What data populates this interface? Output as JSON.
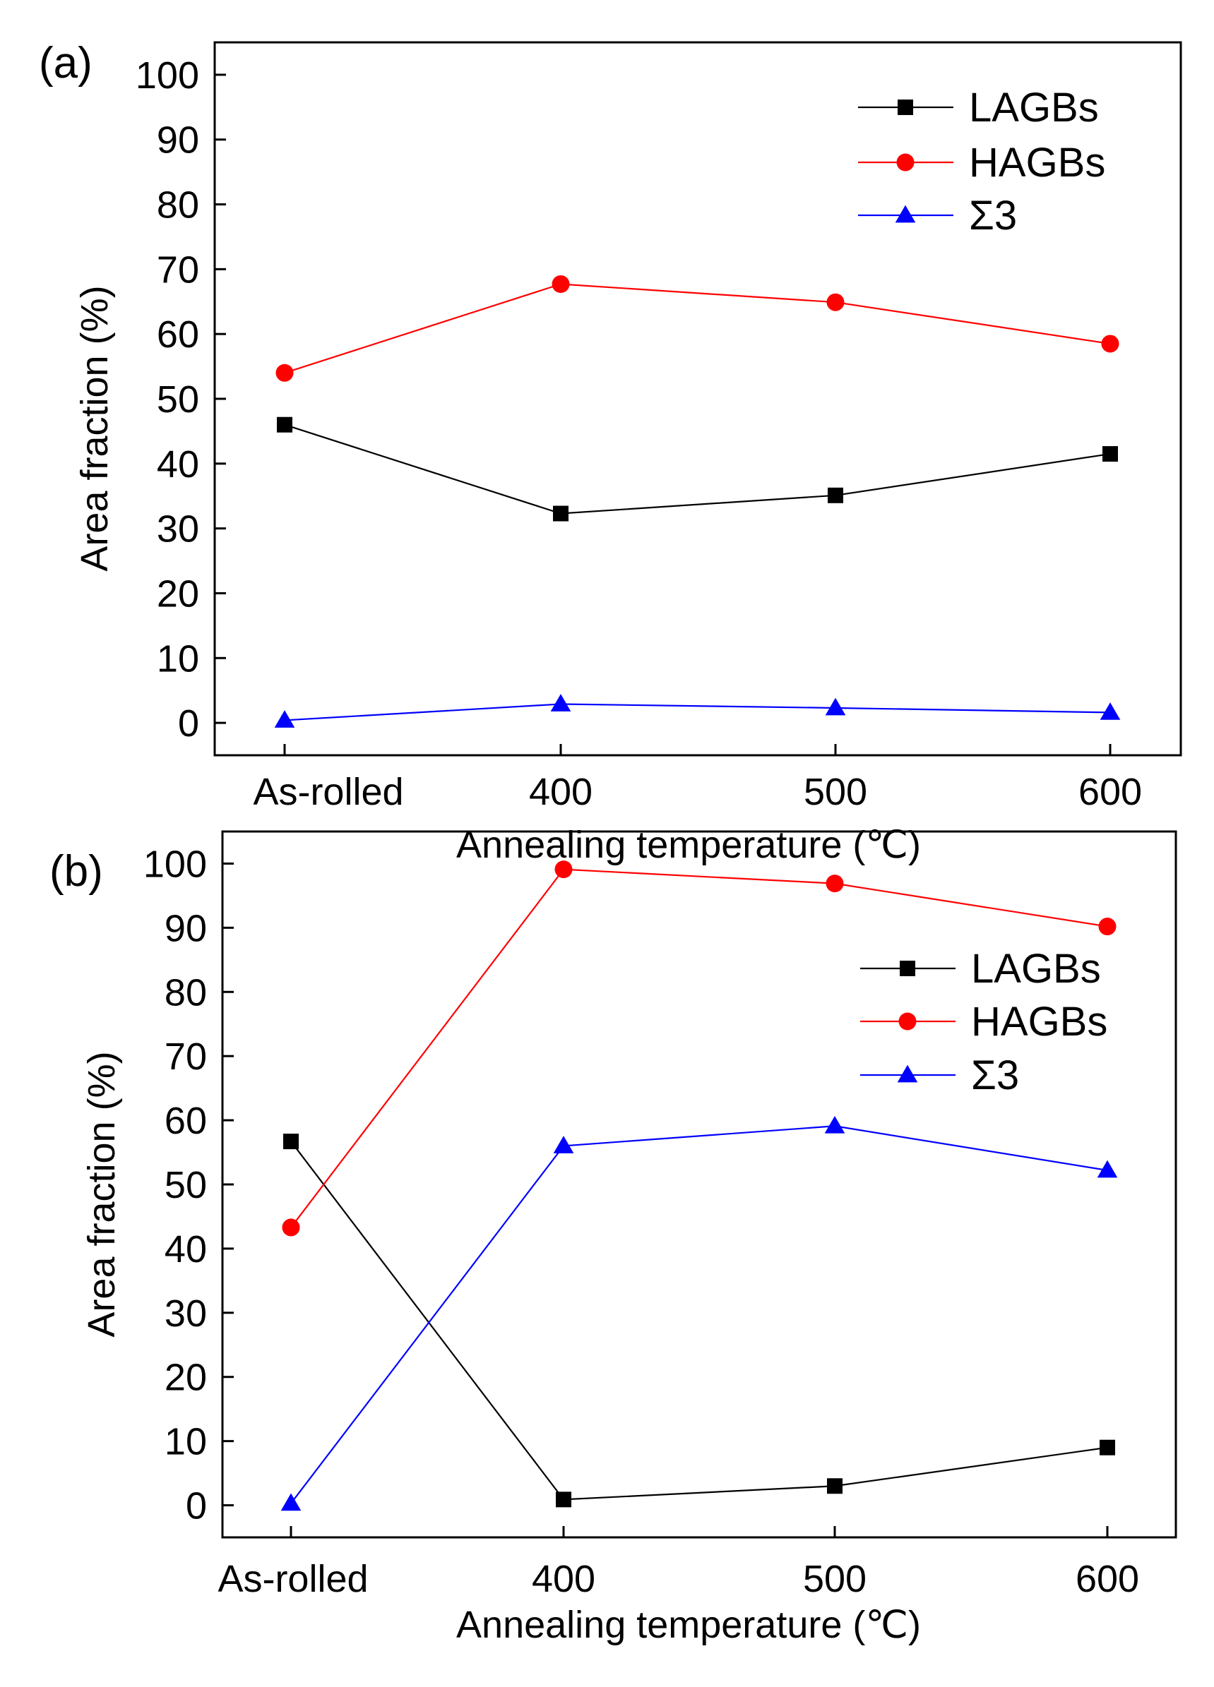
{
  "chart_data": [
    {
      "type": "line",
      "panel_label": "(a)",
      "categories": [
        "As-rolled",
        "400",
        "500",
        "600"
      ],
      "xlabel": "Annealing temperature (℃)",
      "ylabel": "Area fraction (%)",
      "ylim": [
        -5,
        105
      ],
      "yticks": [
        "0",
        "10",
        "20",
        "30",
        "40",
        "50",
        "60",
        "70",
        "80",
        "90",
        "100"
      ],
      "legend_position": "top-right",
      "series": [
        {
          "name": "LAGBs",
          "marker": "square",
          "color": "#000000",
          "values": [
            46.0,
            32.3,
            35.1,
            41.5
          ]
        },
        {
          "name": "HAGBs",
          "marker": "circle",
          "color": "#ff0000",
          "values": [
            54.0,
            67.7,
            64.9,
            58.5
          ]
        },
        {
          "name": "Σ3",
          "marker": "triangle",
          "color": "#0000ff",
          "values": [
            0.4,
            2.9,
            2.3,
            1.6
          ]
        }
      ]
    },
    {
      "type": "line",
      "panel_label": "(b)",
      "categories": [
        "As-rolled",
        "400",
        "500",
        "600"
      ],
      "xlabel": "Annealing temperature (℃)",
      "ylabel": "Area fraction (%)",
      "ylim": [
        -5,
        105
      ],
      "yticks": [
        "0",
        "10",
        "20",
        "30",
        "40",
        "50",
        "60",
        "70",
        "80",
        "90",
        "100"
      ],
      "legend_position": "top-right",
      "series": [
        {
          "name": "LAGBs",
          "marker": "square",
          "color": "#000000",
          "values": [
            56.7,
            0.9,
            3.0,
            9.0
          ]
        },
        {
          "name": "HAGBs",
          "marker": "circle",
          "color": "#ff0000",
          "values": [
            43.3,
            99.1,
            96.9,
            90.2
          ]
        },
        {
          "name": "Σ3",
          "marker": "triangle",
          "color": "#0000ff",
          "values": [
            0.3,
            56.0,
            59.1,
            52.2
          ]
        }
      ]
    }
  ]
}
